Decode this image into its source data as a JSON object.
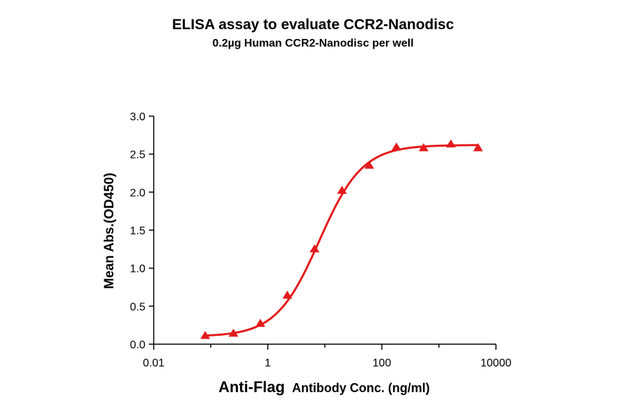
{
  "chart_data": {
    "type": "scatter",
    "title": "ELISA assay to evaluate CCR2-Nanodisc",
    "subtitle": "0.2µg Human CCR2-Nanodisc per well",
    "xlabel_bold": "Anti-Flag",
    "xlabel_rest": "Antibody Conc. (ng/ml)",
    "ylabel": "Mean Abs.(OD450)",
    "x_scale": "log",
    "xlim": [
      0.01,
      10000
    ],
    "ylim": [
      0,
      3.0
    ],
    "x_ticks": [
      0.01,
      1,
      100,
      10000
    ],
    "x_tick_labels": [
      "0.01",
      "1",
      "100",
      "10000"
    ],
    "y_ticks": [
      0,
      0.5,
      1.0,
      1.5,
      2.0,
      2.5,
      3.0
    ],
    "y_tick_labels": [
      "0.0",
      "0.5",
      "1.0",
      "1.5",
      "2.0",
      "2.5",
      "3.0"
    ],
    "grid": false,
    "legend": "none",
    "color": "#e31a1c",
    "marker": "triangle",
    "fit": "4-parameter logistic",
    "series": [
      {
        "x": [
          0.08,
          0.25,
          0.74,
          2.2,
          6.6,
          20,
          60,
          180,
          540,
          1620,
          4860
        ],
        "y": [
          0.11,
          0.14,
          0.27,
          0.64,
          1.25,
          2.02,
          2.35,
          2.59,
          2.58,
          2.63,
          2.58
        ]
      }
    ]
  }
}
